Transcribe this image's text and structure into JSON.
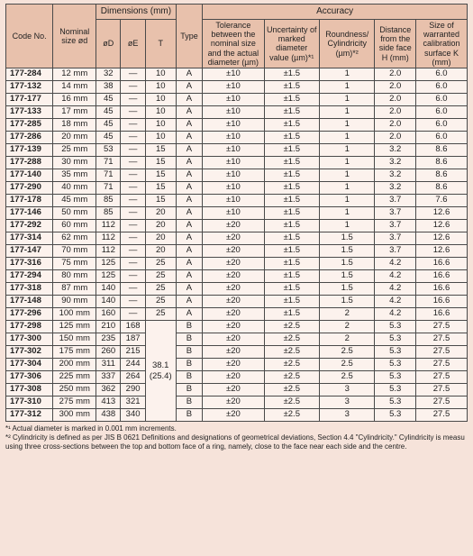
{
  "header": {
    "code": "Code No.",
    "nominal": "Nominal size ød",
    "dimensions": "Dimensions (mm)",
    "dD": "øD",
    "dE": "øE",
    "T": "T",
    "type": "Type",
    "accuracy": "Accuracy",
    "tol": "Tolerance between the nominal size and the actual diameter (µm)",
    "unc": "Uncertainty of marked diameter value (µm)*¹",
    "round": "Roundness/ Cylindricity (µm)*²",
    "dist": "Distance from the side face H (mm)",
    "surfK": "Size of warranted calibration surface K (mm)"
  },
  "rows": [
    {
      "code": "177-284",
      "nom": "12 mm",
      "D": "32",
      "E": "—",
      "T": "10",
      "type": "A",
      "tol": "±10",
      "unc": "±1.5",
      "r": "1",
      "H": "2.0",
      "K": "6.0"
    },
    {
      "code": "177-132",
      "nom": "14 mm",
      "D": "38",
      "E": "—",
      "T": "10",
      "type": "A",
      "tol": "±10",
      "unc": "±1.5",
      "r": "1",
      "H": "2.0",
      "K": "6.0"
    },
    {
      "code": "177-177",
      "nom": "16 mm",
      "D": "45",
      "E": "—",
      "T": "10",
      "type": "A",
      "tol": "±10",
      "unc": "±1.5",
      "r": "1",
      "H": "2.0",
      "K": "6.0"
    },
    {
      "code": "177-133",
      "nom": "17 mm",
      "D": "45",
      "E": "—",
      "T": "10",
      "type": "A",
      "tol": "±10",
      "unc": "±1.5",
      "r": "1",
      "H": "2.0",
      "K": "6.0"
    },
    {
      "code": "177-285",
      "nom": "18 mm",
      "D": "45",
      "E": "—",
      "T": "10",
      "type": "A",
      "tol": "±10",
      "unc": "±1.5",
      "r": "1",
      "H": "2.0",
      "K": "6.0"
    },
    {
      "code": "177-286",
      "nom": "20 mm",
      "D": "45",
      "E": "—",
      "T": "10",
      "type": "A",
      "tol": "±10",
      "unc": "±1.5",
      "r": "1",
      "H": "2.0",
      "K": "6.0"
    },
    {
      "code": "177-139",
      "nom": "25 mm",
      "D": "53",
      "E": "—",
      "T": "15",
      "type": "A",
      "tol": "±10",
      "unc": "±1.5",
      "r": "1",
      "H": "3.2",
      "K": "8.6"
    },
    {
      "code": "177-288",
      "nom": "30 mm",
      "D": "71",
      "E": "—",
      "T": "15",
      "type": "A",
      "tol": "±10",
      "unc": "±1.5",
      "r": "1",
      "H": "3.2",
      "K": "8.6"
    },
    {
      "code": "177-140",
      "nom": "35 mm",
      "D": "71",
      "E": "—",
      "T": "15",
      "type": "A",
      "tol": "±10",
      "unc": "±1.5",
      "r": "1",
      "H": "3.2",
      "K": "8.6"
    },
    {
      "code": "177-290",
      "nom": "40 mm",
      "D": "71",
      "E": "—",
      "T": "15",
      "type": "A",
      "tol": "±10",
      "unc": "±1.5",
      "r": "1",
      "H": "3.2",
      "K": "8.6"
    },
    {
      "code": "177-178",
      "nom": "45 mm",
      "D": "85",
      "E": "—",
      "T": "15",
      "type": "A",
      "tol": "±10",
      "unc": "±1.5",
      "r": "1",
      "H": "3.7",
      "K": "7.6"
    },
    {
      "code": "177-146",
      "nom": "50 mm",
      "D": "85",
      "E": "—",
      "T": "20",
      "type": "A",
      "tol": "±10",
      "unc": "±1.5",
      "r": "1",
      "H": "3.7",
      "K": "12.6"
    },
    {
      "code": "177-292",
      "nom": "60 mm",
      "D": "112",
      "E": "—",
      "T": "20",
      "type": "A",
      "tol": "±20",
      "unc": "±1.5",
      "r": "1",
      "H": "3.7",
      "K": "12.6"
    },
    {
      "code": "177-314",
      "nom": "62 mm",
      "D": "112",
      "E": "—",
      "T": "20",
      "type": "A",
      "tol": "±20",
      "unc": "±1.5",
      "r": "1.5",
      "H": "3.7",
      "K": "12.6"
    },
    {
      "code": "177-147",
      "nom": "70 mm",
      "D": "112",
      "E": "—",
      "T": "20",
      "type": "A",
      "tol": "±20",
      "unc": "±1.5",
      "r": "1.5",
      "H": "3.7",
      "K": "12.6"
    },
    {
      "code": "177-316",
      "nom": "75 mm",
      "D": "125",
      "E": "—",
      "T": "25",
      "type": "A",
      "tol": "±20",
      "unc": "±1.5",
      "r": "1.5",
      "H": "4.2",
      "K": "16.6"
    },
    {
      "code": "177-294",
      "nom": "80 mm",
      "D": "125",
      "E": "—",
      "T": "25",
      "type": "A",
      "tol": "±20",
      "unc": "±1.5",
      "r": "1.5",
      "H": "4.2",
      "K": "16.6"
    },
    {
      "code": "177-318",
      "nom": "87 mm",
      "D": "140",
      "E": "—",
      "T": "25",
      "type": "A",
      "tol": "±20",
      "unc": "±1.5",
      "r": "1.5",
      "H": "4.2",
      "K": "16.6"
    },
    {
      "code": "177-148",
      "nom": "90 mm",
      "D": "140",
      "E": "—",
      "T": "25",
      "type": "A",
      "tol": "±20",
      "unc": "±1.5",
      "r": "1.5",
      "H": "4.2",
      "K": "16.6"
    },
    {
      "code": "177-296",
      "nom": "100 mm",
      "D": "160",
      "E": "—",
      "T": "25",
      "type": "A",
      "tol": "±20",
      "unc": "±1.5",
      "r": "2",
      "H": "4.2",
      "K": "16.6"
    },
    {
      "code": "177-298",
      "nom": "125 mm",
      "D": "210",
      "E": "168",
      "T": "",
      "type": "B",
      "tol": "±20",
      "unc": "±2.5",
      "r": "2",
      "H": "5.3",
      "K": "27.5"
    },
    {
      "code": "177-300",
      "nom": "150 mm",
      "D": "235",
      "E": "187",
      "T": "",
      "type": "B",
      "tol": "±20",
      "unc": "±2.5",
      "r": "2",
      "H": "5.3",
      "K": "27.5"
    },
    {
      "code": "177-302",
      "nom": "175 mm",
      "D": "260",
      "E": "215",
      "T": "",
      "type": "B",
      "tol": "±20",
      "unc": "±2.5",
      "r": "2.5",
      "H": "5.3",
      "K": "27.5"
    },
    {
      "code": "177-304",
      "nom": "200 mm",
      "D": "311",
      "E": "244",
      "T": "",
      "type": "B",
      "tol": "±20",
      "unc": "±2.5",
      "r": "2.5",
      "H": "5.3",
      "K": "27.5"
    },
    {
      "code": "177-306",
      "nom": "225 mm",
      "D": "337",
      "E": "264",
      "T": "",
      "type": "B",
      "tol": "±20",
      "unc": "±2.5",
      "r": "2.5",
      "H": "5.3",
      "K": "27.5"
    },
    {
      "code": "177-308",
      "nom": "250 mm",
      "D": "362",
      "E": "290",
      "T": "",
      "type": "B",
      "tol": "±20",
      "unc": "±2.5",
      "r": "3",
      "H": "5.3",
      "K": "27.5"
    },
    {
      "code": "177-310",
      "nom": "275 mm",
      "D": "413",
      "E": "321",
      "T": "",
      "type": "B",
      "tol": "±20",
      "unc": "±2.5",
      "r": "3",
      "H": "5.3",
      "K": "27.5"
    },
    {
      "code": "177-312",
      "nom": "300 mm",
      "D": "438",
      "E": "340",
      "T": "",
      "type": "B",
      "tol": "±20",
      "unc": "±2.5",
      "r": "3",
      "H": "5.3",
      "K": "27.5"
    }
  ],
  "merged_T": "38.1 (25.4)",
  "notes": {
    "n1": "*¹ Actual diameter is marked in 0.001 mm increments.",
    "n2": "*² Cylindricity is defined as per JIS B 0621 Definitions and designations of geometrical deviations, Section 4.4 \"Cylindricity.\" Cylindricity is measu using three cross-sections between the top and bottom face of a ring, namely, close to the face near each side and the centre."
  },
  "colwidths": [
    "46",
    "42",
    "24",
    "24",
    "24",
    "26",
    "60",
    "54",
    "54",
    "40",
    "50"
  ]
}
